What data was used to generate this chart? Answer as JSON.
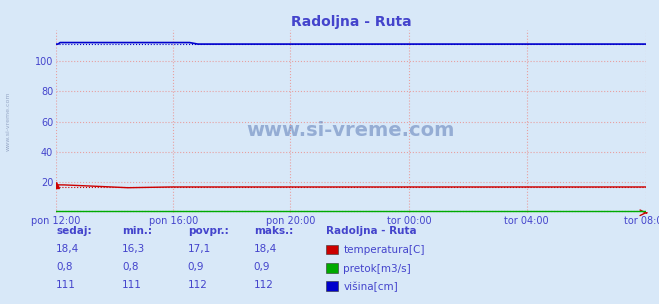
{
  "title": "Radoljna - Ruta",
  "background_color": "#d8e8f8",
  "figsize": [
    6.59,
    3.04
  ],
  "dpi": 100,
  "ylim": [
    0,
    120
  ],
  "yticks": [
    20,
    40,
    60,
    80,
    100
  ],
  "xtick_labels": [
    "pon 12:00",
    "pon 16:00",
    "pon 20:00",
    "tor 00:00",
    "tor 04:00",
    "tor 08:00"
  ],
  "grid_color": "#e8a0a0",
  "title_color": "#4444cc",
  "tick_color": "#4444cc",
  "label_color": "#4444cc",
  "temp_color": "#cc0000",
  "flow_color": "#00aa00",
  "height_color": "#0000cc",
  "n_points": 288,
  "watermark": "www.si-vreme.com",
  "station": "Radoljna - Ruta",
  "legend_entries": [
    "temperatura[C]",
    "pretok[m3/s]",
    "višina[cm]"
  ],
  "legend_colors": [
    "#cc0000",
    "#00aa00",
    "#0000cc"
  ],
  "table_headers": [
    "sedaj:",
    "min.:",
    "povpr.:",
    "maks.:"
  ],
  "table_data": [
    [
      "18,4",
      "16,3",
      "17,1",
      "18,4"
    ],
    [
      "0,8",
      "0,8",
      "0,9",
      "0,9"
    ],
    [
      "111",
      "111",
      "112",
      "112"
    ]
  ]
}
